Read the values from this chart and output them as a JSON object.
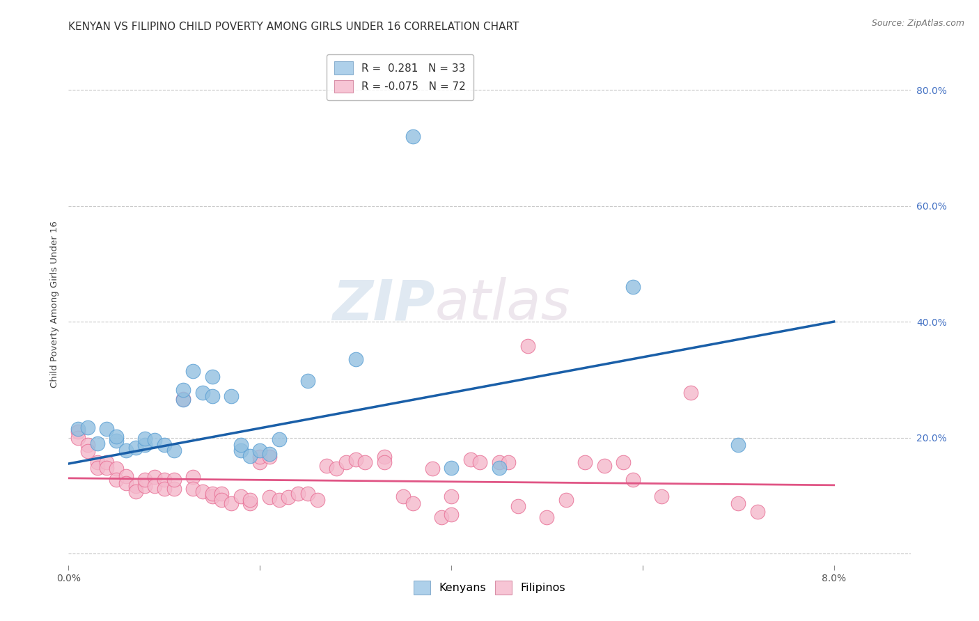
{
  "title": "KENYAN VS FILIPINO CHILD POVERTY AMONG GIRLS UNDER 16 CORRELATION CHART",
  "source": "Source: ZipAtlas.com",
  "ylabel": "Child Poverty Among Girls Under 16",
  "xlim": [
    0.0,
    0.088
  ],
  "ylim": [
    -0.02,
    0.88
  ],
  "xticks": [
    0.0,
    0.02,
    0.04,
    0.06,
    0.08
  ],
  "xticklabels": [
    "0.0%",
    "",
    "",
    "",
    "8.0%"
  ],
  "yticks": [
    0.0,
    0.2,
    0.4,
    0.6,
    0.8
  ],
  "right_yticklabels": [
    "",
    "20.0%",
    "40.0%",
    "60.0%",
    "80.0%"
  ],
  "watermark_zip": "ZIP",
  "watermark_atlas": "atlas",
  "legend_label_kenyan": "R =  0.281   N = 33",
  "legend_label_filipino": "R = -0.075   N = 72",
  "kenyan_color": "#92c0e0",
  "filipino_color": "#f4b8cb",
  "kenyan_edge_color": "#5a9fd4",
  "filipino_edge_color": "#e87096",
  "trend_kenyan_color": "#1a5fa8",
  "trend_filipino_color": "#e05585",
  "background_color": "#ffffff",
  "grid_color": "#c8c8c8",
  "legend_kenyan_color": "#aed0ea",
  "legend_filipino_color": "#f7c5d5",
  "kenyan_points": [
    [
      0.001,
      0.215
    ],
    [
      0.002,
      0.218
    ],
    [
      0.003,
      0.19
    ],
    [
      0.004,
      0.215
    ],
    [
      0.005,
      0.195
    ],
    [
      0.005,
      0.202
    ],
    [
      0.006,
      0.178
    ],
    [
      0.007,
      0.183
    ],
    [
      0.008,
      0.188
    ],
    [
      0.008,
      0.198
    ],
    [
      0.009,
      0.196
    ],
    [
      0.01,
      0.187
    ],
    [
      0.011,
      0.178
    ],
    [
      0.012,
      0.265
    ],
    [
      0.012,
      0.282
    ],
    [
      0.013,
      0.315
    ],
    [
      0.014,
      0.278
    ],
    [
      0.015,
      0.272
    ],
    [
      0.015,
      0.305
    ],
    [
      0.017,
      0.272
    ],
    [
      0.018,
      0.178
    ],
    [
      0.018,
      0.188
    ],
    [
      0.019,
      0.168
    ],
    [
      0.02,
      0.178
    ],
    [
      0.021,
      0.172
    ],
    [
      0.022,
      0.197
    ],
    [
      0.025,
      0.298
    ],
    [
      0.03,
      0.335
    ],
    [
      0.036,
      0.72
    ],
    [
      0.04,
      0.148
    ],
    [
      0.045,
      0.148
    ],
    [
      0.059,
      0.46
    ],
    [
      0.07,
      0.188
    ]
  ],
  "filipino_points": [
    [
      0.001,
      0.21
    ],
    [
      0.001,
      0.2
    ],
    [
      0.002,
      0.187
    ],
    [
      0.002,
      0.177
    ],
    [
      0.003,
      0.158
    ],
    [
      0.003,
      0.148
    ],
    [
      0.004,
      0.157
    ],
    [
      0.004,
      0.148
    ],
    [
      0.005,
      0.147
    ],
    [
      0.005,
      0.128
    ],
    [
      0.006,
      0.133
    ],
    [
      0.006,
      0.122
    ],
    [
      0.007,
      0.117
    ],
    [
      0.007,
      0.107
    ],
    [
      0.008,
      0.117
    ],
    [
      0.008,
      0.127
    ],
    [
      0.009,
      0.132
    ],
    [
      0.009,
      0.117
    ],
    [
      0.01,
      0.127
    ],
    [
      0.01,
      0.112
    ],
    [
      0.011,
      0.112
    ],
    [
      0.011,
      0.127
    ],
    [
      0.012,
      0.267
    ],
    [
      0.013,
      0.132
    ],
    [
      0.013,
      0.112
    ],
    [
      0.014,
      0.107
    ],
    [
      0.015,
      0.098
    ],
    [
      0.015,
      0.103
    ],
    [
      0.016,
      0.103
    ],
    [
      0.016,
      0.092
    ],
    [
      0.017,
      0.087
    ],
    [
      0.018,
      0.098
    ],
    [
      0.019,
      0.087
    ],
    [
      0.019,
      0.092
    ],
    [
      0.02,
      0.157
    ],
    [
      0.02,
      0.167
    ],
    [
      0.021,
      0.167
    ],
    [
      0.021,
      0.097
    ],
    [
      0.022,
      0.092
    ],
    [
      0.023,
      0.097
    ],
    [
      0.024,
      0.103
    ],
    [
      0.025,
      0.103
    ],
    [
      0.026,
      0.092
    ],
    [
      0.027,
      0.152
    ],
    [
      0.028,
      0.147
    ],
    [
      0.029,
      0.157
    ],
    [
      0.03,
      0.162
    ],
    [
      0.031,
      0.157
    ],
    [
      0.033,
      0.167
    ],
    [
      0.033,
      0.157
    ],
    [
      0.035,
      0.098
    ],
    [
      0.036,
      0.087
    ],
    [
      0.038,
      0.147
    ],
    [
      0.039,
      0.062
    ],
    [
      0.04,
      0.067
    ],
    [
      0.04,
      0.098
    ],
    [
      0.042,
      0.162
    ],
    [
      0.043,
      0.157
    ],
    [
      0.045,
      0.157
    ],
    [
      0.046,
      0.157
    ],
    [
      0.047,
      0.082
    ],
    [
      0.048,
      0.358
    ],
    [
      0.05,
      0.062
    ],
    [
      0.052,
      0.092
    ],
    [
      0.054,
      0.157
    ],
    [
      0.056,
      0.152
    ],
    [
      0.058,
      0.157
    ],
    [
      0.059,
      0.127
    ],
    [
      0.062,
      0.098
    ],
    [
      0.065,
      0.278
    ],
    [
      0.07,
      0.087
    ],
    [
      0.072,
      0.072
    ]
  ],
  "title_fontsize": 11,
  "axis_label_fontsize": 9.5,
  "tick_fontsize": 10,
  "legend_fontsize": 11,
  "source_fontsize": 9
}
